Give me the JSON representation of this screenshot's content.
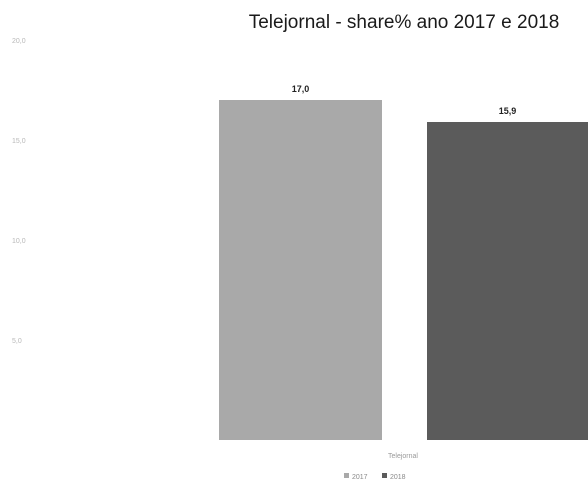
{
  "chart_data": {
    "type": "bar",
    "title": "Telejornal - share% ano 2017 e 2018",
    "xlabel": "",
    "ylabel": "",
    "categories": [
      "Telejornal"
    ],
    "series": [
      {
        "values": [
          17.0
        ],
        "label": "17,0",
        "color": "#a9a9a9"
      },
      {
        "values": [
          15.9
        ],
        "label": "15,9",
        "color": "#5b5b5b"
      }
    ],
    "ylim": [
      0,
      20
    ],
    "yticks": [
      "20,0",
      "15,0",
      "10,0",
      "5,0"
    ],
    "category_label": "Telejornal",
    "legend_labels": [
      "2017",
      "2018"
    ],
    "legend_position": "bottom",
    "grid": false
  }
}
